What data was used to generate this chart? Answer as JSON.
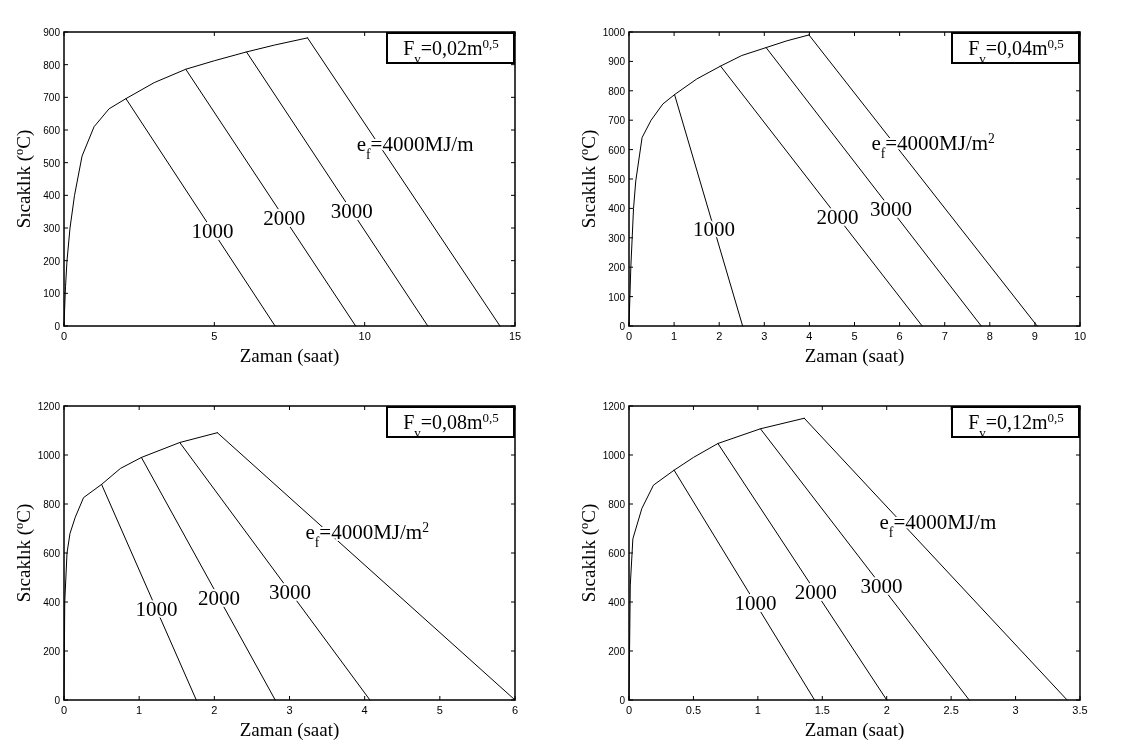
{
  "chart_data": [
    {
      "type": "line",
      "title": "F$_{v}$=0,02m$^{0,5}$",
      "xlabel": "Zaman (saat)",
      "ylabel": "Sıcaklık ($^{o}$C)",
      "xlim": [
        0,
        15
      ],
      "xticks": [
        0,
        5,
        10,
        15
      ],
      "ylim": [
        0,
        900
      ],
      "yticks": [
        0,
        100,
        200,
        300,
        400,
        500,
        600,
        700,
        800,
        900
      ],
      "marker": "none",
      "line_style": "solid",
      "series": [
        {
          "color": "#000000",
          "x": [
            0,
            0.02,
            0.05,
            0.1,
            0.2,
            0.35,
            0.6,
            1.0,
            1.5,
            2.06,
            3,
            4.05,
            5,
            6.07,
            7,
            8.1
          ],
          "values": [
            0,
            50,
            120,
            200,
            300,
            400,
            520,
            610,
            665,
            696,
            745,
            786,
            812,
            839,
            860,
            882
          ]
        },
        {
          "color": "#000000",
          "x": [
            2.06,
            7.02
          ],
          "values": [
            696,
            0
          ]
        },
        {
          "color": "#000000",
          "x": [
            4.05,
            9.7
          ],
          "values": [
            786,
            0
          ]
        },
        {
          "color": "#000000",
          "x": [
            6.07,
            12.1
          ],
          "values": [
            839,
            0
          ]
        },
        {
          "color": "#000000",
          "x": [
            8.1,
            14.5
          ],
          "values": [
            882,
            0
          ]
        }
      ],
      "annotations": [
        "1000",
        "2000",
        "3000",
        "e$_{f}$=4000MJ/m"
      ]
    },
    {
      "type": "line",
      "title": "F$_{v}$=0,04m$^{0,5}$",
      "xlabel": "Zaman (saat)",
      "ylabel": "Sıcaklık ($^{o}$C)",
      "xlim": [
        0,
        10
      ],
      "xticks": [
        0,
        1,
        2,
        3,
        4,
        5,
        6,
        7,
        8,
        9,
        10
      ],
      "ylim": [
        0,
        1000
      ],
      "yticks": [
        0,
        100,
        200,
        300,
        400,
        500,
        600,
        700,
        800,
        900,
        1000
      ],
      "marker": "none",
      "line_style": "solid",
      "series": [
        {
          "color": "#000000",
          "x": [
            0,
            0.04,
            0.1,
            0.15,
            0.29,
            0.49,
            0.75,
            1.01,
            1.5,
            2.03,
            2.5,
            3.04,
            3.5,
            3.99
          ],
          "values": [
            0,
            198,
            399,
            493,
            641,
            700,
            755,
            787,
            840,
            884,
            920,
            947,
            970,
            990
          ]
        },
        {
          "color": "#000000",
          "x": [
            1.01,
            2.52
          ],
          "values": [
            787,
            0
          ]
        },
        {
          "color": "#000000",
          "x": [
            2.03,
            6.5
          ],
          "values": [
            884,
            0
          ]
        },
        {
          "color": "#000000",
          "x": [
            3.04,
            7.81
          ],
          "values": [
            947,
            0
          ]
        },
        {
          "color": "#000000",
          "x": [
            3.99,
            9.05
          ],
          "values": [
            990,
            0
          ]
        }
      ],
      "annotations": [
        "1000",
        "2000",
        "3000",
        "e$_{f}$=4000MJ/m$^{2}$"
      ]
    },
    {
      "type": "line",
      "title": "F$_{v}$=0,08m$^{0,5}$",
      "xlabel": "Zaman (saat)",
      "ylabel": "Sıcaklık ($^{o}$C)",
      "xlim": [
        0,
        6
      ],
      "xticks": [
        0,
        1,
        2,
        3,
        4,
        5,
        6
      ],
      "ylim": [
        0,
        1200
      ],
      "yticks": [
        0,
        200,
        400,
        600,
        800,
        1000,
        1200
      ],
      "marker": "none",
      "line_style": "solid",
      "series": [
        {
          "color": "#000000",
          "x": [
            0,
            0.01,
            0.04,
            0.08,
            0.15,
            0.26,
            0.5,
            0.75,
            1.03,
            1.54,
            2.04
          ],
          "values": [
            0,
            400,
            600,
            680,
            746,
            826,
            880,
            945,
            990,
            1051,
            1091
          ]
        },
        {
          "color": "#000000",
          "x": [
            0.5,
            1.76
          ],
          "values": [
            880,
            0
          ]
        },
        {
          "color": "#000000",
          "x": [
            1.03,
            2.81
          ],
          "values": [
            990,
            0
          ]
        },
        {
          "color": "#000000",
          "x": [
            1.54,
            4.07
          ],
          "values": [
            1051,
            0
          ]
        },
        {
          "color": "#000000",
          "x": [
            2.04,
            6.0
          ],
          "values": [
            1091,
            0
          ]
        }
      ],
      "annotations": [
        "1000",
        "2000",
        "3000",
        "e$_{f}$=4000MJ/m$^{2}$"
      ]
    },
    {
      "type": "line",
      "title": "F$_{v}$=0,12m$^{0,5}$",
      "xlabel": "Zaman (saat)",
      "ylabel": "Sıcaklık ($^{o}$C)",
      "xlim": [
        0,
        3.5
      ],
      "xticks": [
        0,
        0.5,
        1,
        1.5,
        2,
        2.5,
        3,
        3.5
      ],
      "ylim": [
        0,
        1200
      ],
      "yticks": [
        0,
        200,
        400,
        600,
        800,
        1000,
        1200
      ],
      "marker": "none",
      "line_style": "solid",
      "series": [
        {
          "color": "#000000",
          "x": [
            0,
            0.01,
            0.03,
            0.1,
            0.19,
            0.35,
            0.5,
            0.69,
            1.02,
            1.36
          ],
          "values": [
            0,
            469,
            658,
            782,
            877,
            938,
            990,
            1047,
            1107,
            1150
          ]
        },
        {
          "color": "#000000",
          "x": [
            0.35,
            1.44
          ],
          "values": [
            938,
            0
          ]
        },
        {
          "color": "#000000",
          "x": [
            0.69,
            2.0
          ],
          "values": [
            1047,
            0
          ]
        },
        {
          "color": "#000000",
          "x": [
            1.02,
            2.64
          ],
          "values": [
            1107,
            0
          ]
        },
        {
          "color": "#000000",
          "x": [
            1.36,
            3.4
          ],
          "values": [
            1150,
            0
          ]
        }
      ],
      "annotations": [
        "1000",
        "2000",
        "3000",
        "e$_{f}$=4000MJ/m"
      ]
    }
  ]
}
